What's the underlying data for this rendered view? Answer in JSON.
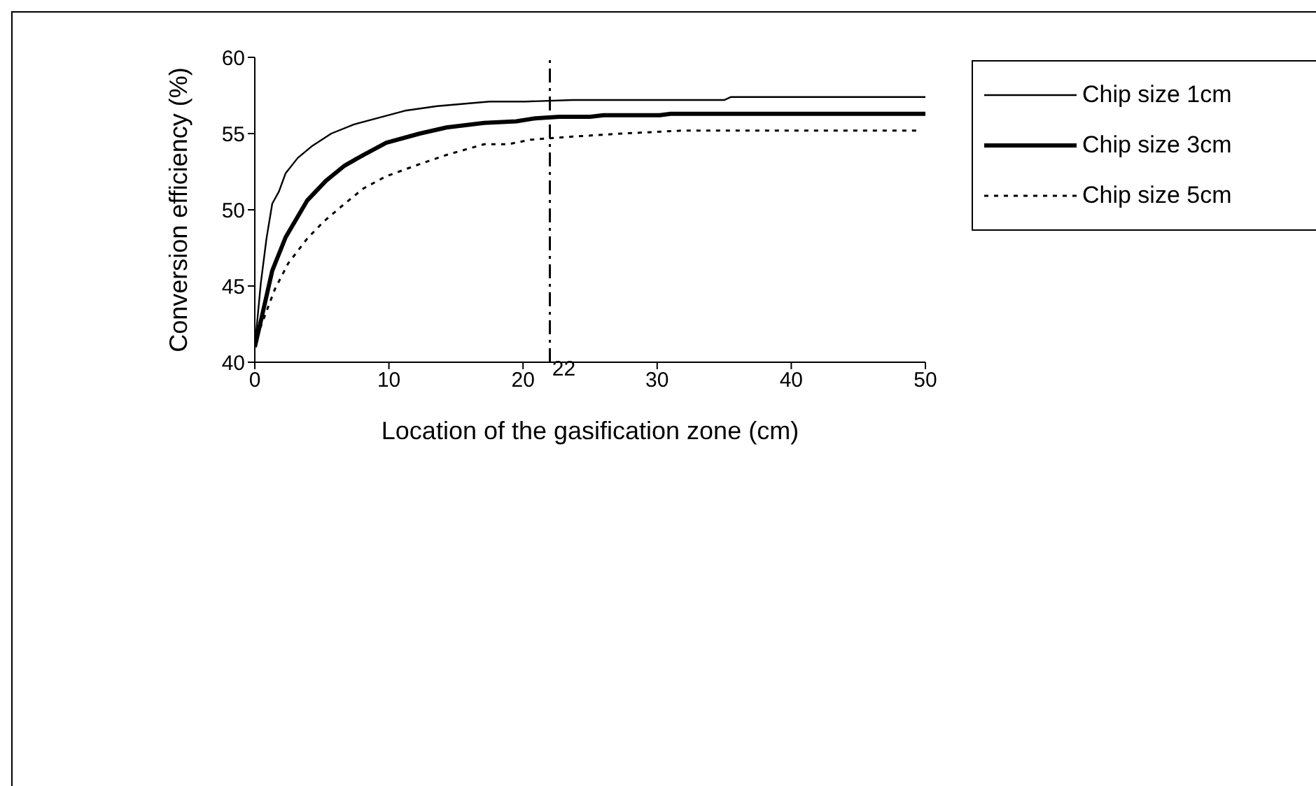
{
  "chart_data": {
    "type": "line",
    "xlabel": "Location of the gasification zone (cm)",
    "ylabel": "Conversion efficiency (%)",
    "xlim": [
      0,
      50
    ],
    "xticks": [
      0,
      10,
      20,
      30,
      40,
      50
    ],
    "ylim": [
      40,
      60
    ],
    "yticks": [
      40,
      45,
      50,
      55,
      60
    ],
    "grid": false,
    "legend": "top right",
    "marker": "none",
    "ref_lines": [
      {
        "axis": "x",
        "value": 22,
        "label": "22",
        "line_style": "dashdot",
        "color": "#000000"
      }
    ],
    "series": [
      {
        "name": "Chip size 1cm",
        "color": "#000000",
        "line_style": "solid",
        "x": [
          0,
          0.45,
          0.87,
          1.3,
          1.8,
          2.3,
          3.2,
          4.3,
          5.7,
          7.4,
          9.1,
          11.2,
          13.6,
          17.5,
          20.2,
          23.7,
          35,
          35.5,
          50
        ],
        "values": [
          41.0,
          45.2,
          48.1,
          50.4,
          51.2,
          52.4,
          53.4,
          54.2,
          55.0,
          55.6,
          56.0,
          56.5,
          56.8,
          57.1,
          57.1,
          57.2,
          57.2,
          57.4,
          57.4
        ]
      },
      {
        "name": "Chip size 3cm",
        "color": "#000000",
        "line_style": "solid",
        "x": [
          0,
          0.45,
          1.3,
          2.3,
          3.9,
          5.3,
          6.7,
          8.1,
          9.8,
          12.3,
          14.3,
          17.1,
          19.5,
          20.9,
          22.7,
          25,
          26,
          30.2,
          31,
          50
        ],
        "values": [
          41.0,
          42.7,
          46.0,
          48.2,
          50.6,
          51.9,
          52.9,
          53.6,
          54.4,
          55.0,
          55.4,
          55.7,
          55.8,
          56.0,
          56.1,
          56.1,
          56.2,
          56.2,
          56.3,
          56.3
        ]
      },
      {
        "name": "Chip size 5cm",
        "color": "#000000",
        "line_style": "dotted",
        "x": [
          0,
          0.3,
          1.5,
          2.5,
          3.9,
          5.1,
          6.7,
          8.1,
          9.8,
          12.3,
          14.3,
          17.1,
          18.9,
          20.6,
          23.7,
          27.4,
          32,
          49.5
        ],
        "values": [
          41.0,
          42.0,
          44.8,
          46.5,
          48.1,
          49.2,
          50.4,
          51.4,
          52.2,
          53.0,
          53.6,
          54.3,
          54.3,
          54.6,
          54.8,
          55.0,
          55.2,
          55.2
        ]
      }
    ]
  }
}
